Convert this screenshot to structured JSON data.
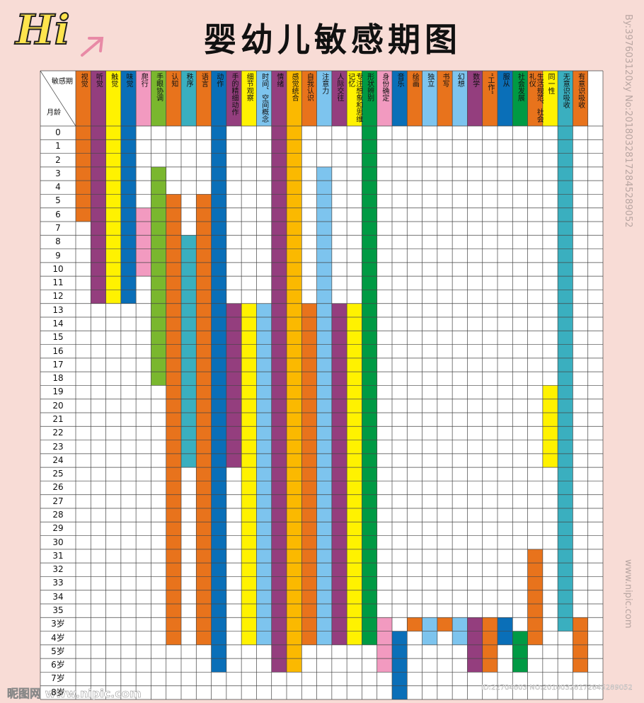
{
  "decoration": "Hi",
  "title": "婴幼儿敏感期图",
  "corner": {
    "top": "敏感期",
    "bottom": "月龄"
  },
  "rows": [
    "0",
    "1",
    "2",
    "3",
    "4",
    "5",
    "6",
    "7",
    "8",
    "9",
    "10",
    "11",
    "12",
    "13",
    "14",
    "15",
    "16",
    "17",
    "18",
    "19",
    "20",
    "21",
    "22",
    "23",
    "24",
    "25",
    "26",
    "27",
    "28",
    "29",
    "30",
    "31",
    "32",
    "33",
    "34",
    "35",
    "3岁",
    "4岁",
    "5岁",
    "6岁",
    "7岁",
    "8岁"
  ],
  "columns": [
    {
      "name": "视觉",
      "color": "#e8731c",
      "spans": [
        [
          "0",
          "6"
        ]
      ]
    },
    {
      "name": "听觉",
      "color": "#943e7e",
      "spans": [
        [
          "0",
          "12"
        ]
      ]
    },
    {
      "name": "触觉",
      "color": "#fff200",
      "spans": [
        [
          "0",
          "12"
        ]
      ]
    },
    {
      "name": "味觉",
      "color": "#0a6fb8",
      "spans": [
        [
          "0",
          "12"
        ]
      ]
    },
    {
      "name": "爬行",
      "color": "#f29ac0",
      "spans": [
        [
          "6",
          "10"
        ]
      ]
    },
    {
      "name": "手眼协调",
      "color": "#7ab72e",
      "spans": [
        [
          "3",
          "18"
        ]
      ]
    },
    {
      "name": "认知",
      "color": "#e8731c",
      "spans": [
        [
          "5",
          "4岁"
        ]
      ]
    },
    {
      "name": "秩序",
      "color": "#3aafbf",
      "spans": [
        [
          "8",
          "24"
        ]
      ]
    },
    {
      "name": "语言",
      "color": "#e8731c",
      "spans": [
        [
          "5",
          "4岁"
        ]
      ]
    },
    {
      "name": "动作",
      "color": "#0a6fb8",
      "spans": [
        [
          "0",
          "6岁"
        ]
      ]
    },
    {
      "name": "手的精细动作",
      "color": "#943e7e",
      "spans": [
        [
          "13",
          "24"
        ]
      ]
    },
    {
      "name": "细节观察",
      "color": "#fff200",
      "spans": [
        [
          "13",
          "4岁"
        ]
      ]
    },
    {
      "name": "时间、空间概念",
      "color": "#7dc4ee",
      "spans": [
        [
          "13",
          "4岁"
        ]
      ]
    },
    {
      "name": "情绪",
      "color": "#943e7e",
      "spans": [
        [
          "0",
          "6岁"
        ]
      ]
    },
    {
      "name": "感觉统合",
      "color": "#fbb900",
      "spans": [
        [
          "0",
          "6岁"
        ]
      ]
    },
    {
      "name": "自我认识",
      "color": "#e8731c",
      "spans": [
        [
          "13",
          "4岁"
        ]
      ]
    },
    {
      "name": "注意力",
      "color": "#7dc4ee",
      "spans": [
        [
          "3",
          "4岁"
        ]
      ]
    },
    {
      "name": "人际交往",
      "color": "#943e7e",
      "spans": [
        [
          "13",
          "4岁"
        ]
      ]
    },
    {
      "name": "专注想象和思维记忆",
      "color": "#fff200",
      "spans": [
        [
          "13",
          "4岁"
        ]
      ]
    },
    {
      "name": "形状辨别",
      "color": "#009a44",
      "spans": [
        [
          "0",
          "4岁"
        ]
      ]
    },
    {
      "name": "身份确定",
      "color": "#f29ac0",
      "spans": [
        [
          "3岁",
          "6岁"
        ]
      ]
    },
    {
      "name": "音乐",
      "color": "#0a6fb8",
      "spans": [
        [
          "4岁",
          "8岁"
        ]
      ]
    },
    {
      "name": "绘画",
      "color": "#e8731c",
      "spans": [
        [
          "3岁",
          "3岁"
        ]
      ]
    },
    {
      "name": "独立",
      "color": "#7dc4ee",
      "spans": [
        [
          "3岁",
          "4岁"
        ]
      ]
    },
    {
      "name": "书写",
      "color": "#e8731c",
      "spans": [
        [
          "3岁",
          "3岁"
        ]
      ]
    },
    {
      "name": "幻想",
      "color": "#7dc4ee",
      "spans": [
        [
          "3岁",
          "4岁"
        ]
      ]
    },
    {
      "name": "数学",
      "color": "#943e7e",
      "spans": [
        [
          "3岁",
          "6岁"
        ]
      ]
    },
    {
      "name": "“工作”",
      "color": "#e8731c",
      "spans": [
        [
          "3岁",
          "6岁"
        ]
      ]
    },
    {
      "name": "服从",
      "color": "#0a6fb8",
      "spans": [
        [
          "3岁",
          "4岁"
        ]
      ]
    },
    {
      "name": "社会发展",
      "color": "#009a44",
      "spans": [
        [
          "4岁",
          "6岁"
        ]
      ]
    },
    {
      "name": "生活规范、社会礼仪",
      "color": "#e8731c",
      "spans": [
        [
          "31",
          "4岁"
        ]
      ]
    },
    {
      "name": "同一性",
      "color": "#fff200",
      "spans": [
        [
          "19",
          "24"
        ]
      ]
    },
    {
      "name": "无意识吸收",
      "color": "#3aafbf",
      "spans": [
        [
          "0",
          "3岁"
        ]
      ]
    },
    {
      "name": "有意识吸收",
      "color": "#e8731c",
      "spans": [
        [
          "3岁",
          "6岁"
        ]
      ]
    }
  ],
  "watermarks": [
    "By:397603120xy No:20180328172845289052",
    "www.nipic.com",
    "昵图网 www.nipic.com",
    "ID:22704603 NO:20180328172845289052"
  ]
}
